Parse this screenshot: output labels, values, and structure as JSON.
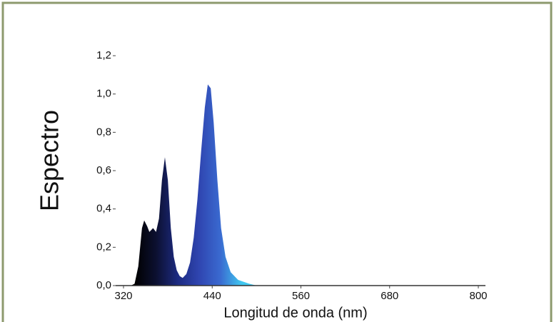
{
  "chart_data": {
    "type": "area",
    "xlabel": "Longitud de onda (nm)",
    "ylabel": "Espectro",
    "x": [
      320,
      330,
      335,
      340,
      345,
      348,
      352,
      355,
      360,
      364,
      368,
      372,
      376,
      380,
      384,
      388,
      392,
      396,
      400,
      405,
      410,
      415,
      420,
      425,
      430,
      434,
      438,
      442,
      447,
      452,
      458,
      465,
      475,
      490,
      500,
      800
    ],
    "values": [
      0,
      0,
      0.01,
      0.1,
      0.3,
      0.34,
      0.31,
      0.28,
      0.3,
      0.28,
      0.35,
      0.55,
      0.67,
      0.55,
      0.3,
      0.15,
      0.08,
      0.05,
      0.04,
      0.06,
      0.12,
      0.25,
      0.45,
      0.7,
      0.93,
      1.05,
      1.03,
      0.85,
      0.55,
      0.3,
      0.15,
      0.07,
      0.03,
      0.01,
      0,
      0
    ],
    "colors": [
      "#000000",
      "#0c1030",
      "#1c2a80",
      "#2f45b0",
      "#3a6ad0",
      "#40c8f0"
    ],
    "xlim": [
      320,
      800
    ],
    "xticks": [
      320,
      440,
      560,
      680,
      800
    ],
    "ylim": [
      0,
      1.2
    ],
    "yticks": [
      {
        "value": 0,
        "label": "0,0"
      },
      {
        "value": 0.2,
        "label": "0,2"
      },
      {
        "value": 0.4,
        "label": "0,4"
      },
      {
        "value": 0.6,
        "label": "0,6"
      },
      {
        "value": 0.8,
        "label": "0,8"
      },
      {
        "value": 1.0,
        "label": "1,0"
      },
      {
        "value": 1.2,
        "label": "1,2"
      }
    ]
  }
}
